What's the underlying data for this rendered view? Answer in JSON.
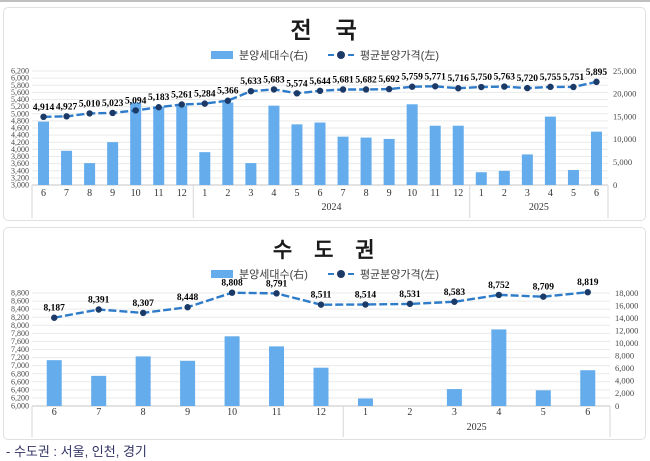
{
  "page": {
    "footnote": "- 수도권 : 서울, 인천, 경기"
  },
  "legend": {
    "bar_label": "분양세대수(右)",
    "line_label": "평균분양가격(左)"
  },
  "colors": {
    "bar": "#64ACEC",
    "line": "#2E7CC9",
    "marker": "#1B3A67",
    "grid": "#EAEAEA",
    "axis_line": "#C6C6C6",
    "separator": "#D6D6D6",
    "axis_text": "#4A4A4A",
    "label_text": "#000000",
    "footnote_text": "#333366"
  },
  "chart_data": [
    {
      "type": "bar",
      "subtype": "bar+line combo",
      "title": "전 국",
      "categories": [
        "6",
        "7",
        "8",
        "9",
        "10",
        "11",
        "12",
        "1",
        "2",
        "3",
        "4",
        "5",
        "6",
        "7",
        "8",
        "9",
        "10",
        "11",
        "12",
        "1",
        "2",
        "3",
        "4",
        "5",
        "6"
      ],
      "year_groups": [
        {
          "label": "",
          "span": 7
        },
        {
          "label": "2024",
          "span": 12
        },
        {
          "label": "2025",
          "span": 6
        }
      ],
      "series": [
        {
          "name": "분양세대수(右)",
          "type": "bar",
          "axis": "right",
          "values": [
            13900,
            7500,
            4800,
            9400,
            18100,
            17200,
            17400,
            7200,
            18100,
            4800,
            17400,
            13300,
            13700,
            10600,
            10400,
            10100,
            17700,
            13000,
            13000,
            2800,
            3100,
            6700,
            15000,
            3300,
            11700
          ]
        },
        {
          "name": "평균분양가격(左)",
          "type": "line",
          "axis": "left",
          "data_labels": true,
          "values": [
            4914,
            4927,
            5010,
            5023,
            5094,
            5183,
            5261,
            5284,
            5366,
            5633,
            5683,
            5574,
            5644,
            5681,
            5682,
            5692,
            5759,
            5771,
            5716,
            5750,
            5763,
            5720,
            5755,
            5751,
            5895
          ]
        }
      ],
      "left_axis": {
        "min": 3000,
        "max": 6200,
        "step": 200
      },
      "right_axis": {
        "min": 0,
        "max": 25000,
        "step": 5000
      },
      "grid": true,
      "legend_position": "top"
    },
    {
      "type": "bar",
      "subtype": "bar+line combo",
      "title": "수 도 권",
      "categories": [
        "6",
        "7",
        "8",
        "9",
        "10",
        "11",
        "12",
        "1",
        "2",
        "3",
        "4",
        "5",
        "6"
      ],
      "year_groups": [
        {
          "label": "",
          "span": 7
        },
        {
          "label": "2025",
          "span": 6
        }
      ],
      "series": [
        {
          "name": "분양세대수(右)",
          "type": "bar",
          "axis": "right",
          "values": [
            7300,
            4800,
            7900,
            7200,
            11100,
            9500,
            6100,
            1200,
            0,
            2700,
            12200,
            2500,
            5700
          ]
        },
        {
          "name": "평균분양가격(左)",
          "type": "line",
          "axis": "left",
          "data_labels": true,
          "values": [
            8187,
            8391,
            8307,
            8448,
            8808,
            8791,
            8511,
            8514,
            8531,
            8583,
            8752,
            8709,
            8819
          ]
        }
      ],
      "left_axis": {
        "min": 6000,
        "max": 8800,
        "step": 200
      },
      "right_axis": {
        "min": 0,
        "max": 18000,
        "step": 2000
      },
      "grid": true,
      "legend_position": "top"
    }
  ]
}
